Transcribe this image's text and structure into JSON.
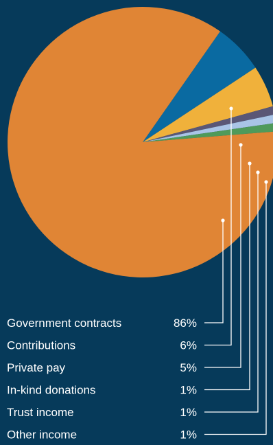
{
  "chart_data": {
    "type": "pie",
    "title": "",
    "slices": [
      {
        "label": "Government contracts",
        "value_label": "86%",
        "value": 86,
        "color": "#e08535"
      },
      {
        "label": "Contributions",
        "value_label": "6%",
        "value": 6,
        "color": "#0a6aa1"
      },
      {
        "label": "Private pay",
        "value_label": "5%",
        "value": 5,
        "color": "#f0b13b"
      },
      {
        "label": "In-kind donations",
        "value_label": "1%",
        "value": 1,
        "color": "#5a5776"
      },
      {
        "label": "Trust income",
        "value_label": "1%",
        "value": 1,
        "color": "#a9c4e6"
      },
      {
        "label": "Other income",
        "value_label": "1%",
        "value": 1,
        "color": "#4f9a5a"
      }
    ],
    "legend_position": "bottom-left",
    "background_color": "#063a5a",
    "text_color": "#ffffff",
    "leader_color": "#ffffff"
  }
}
